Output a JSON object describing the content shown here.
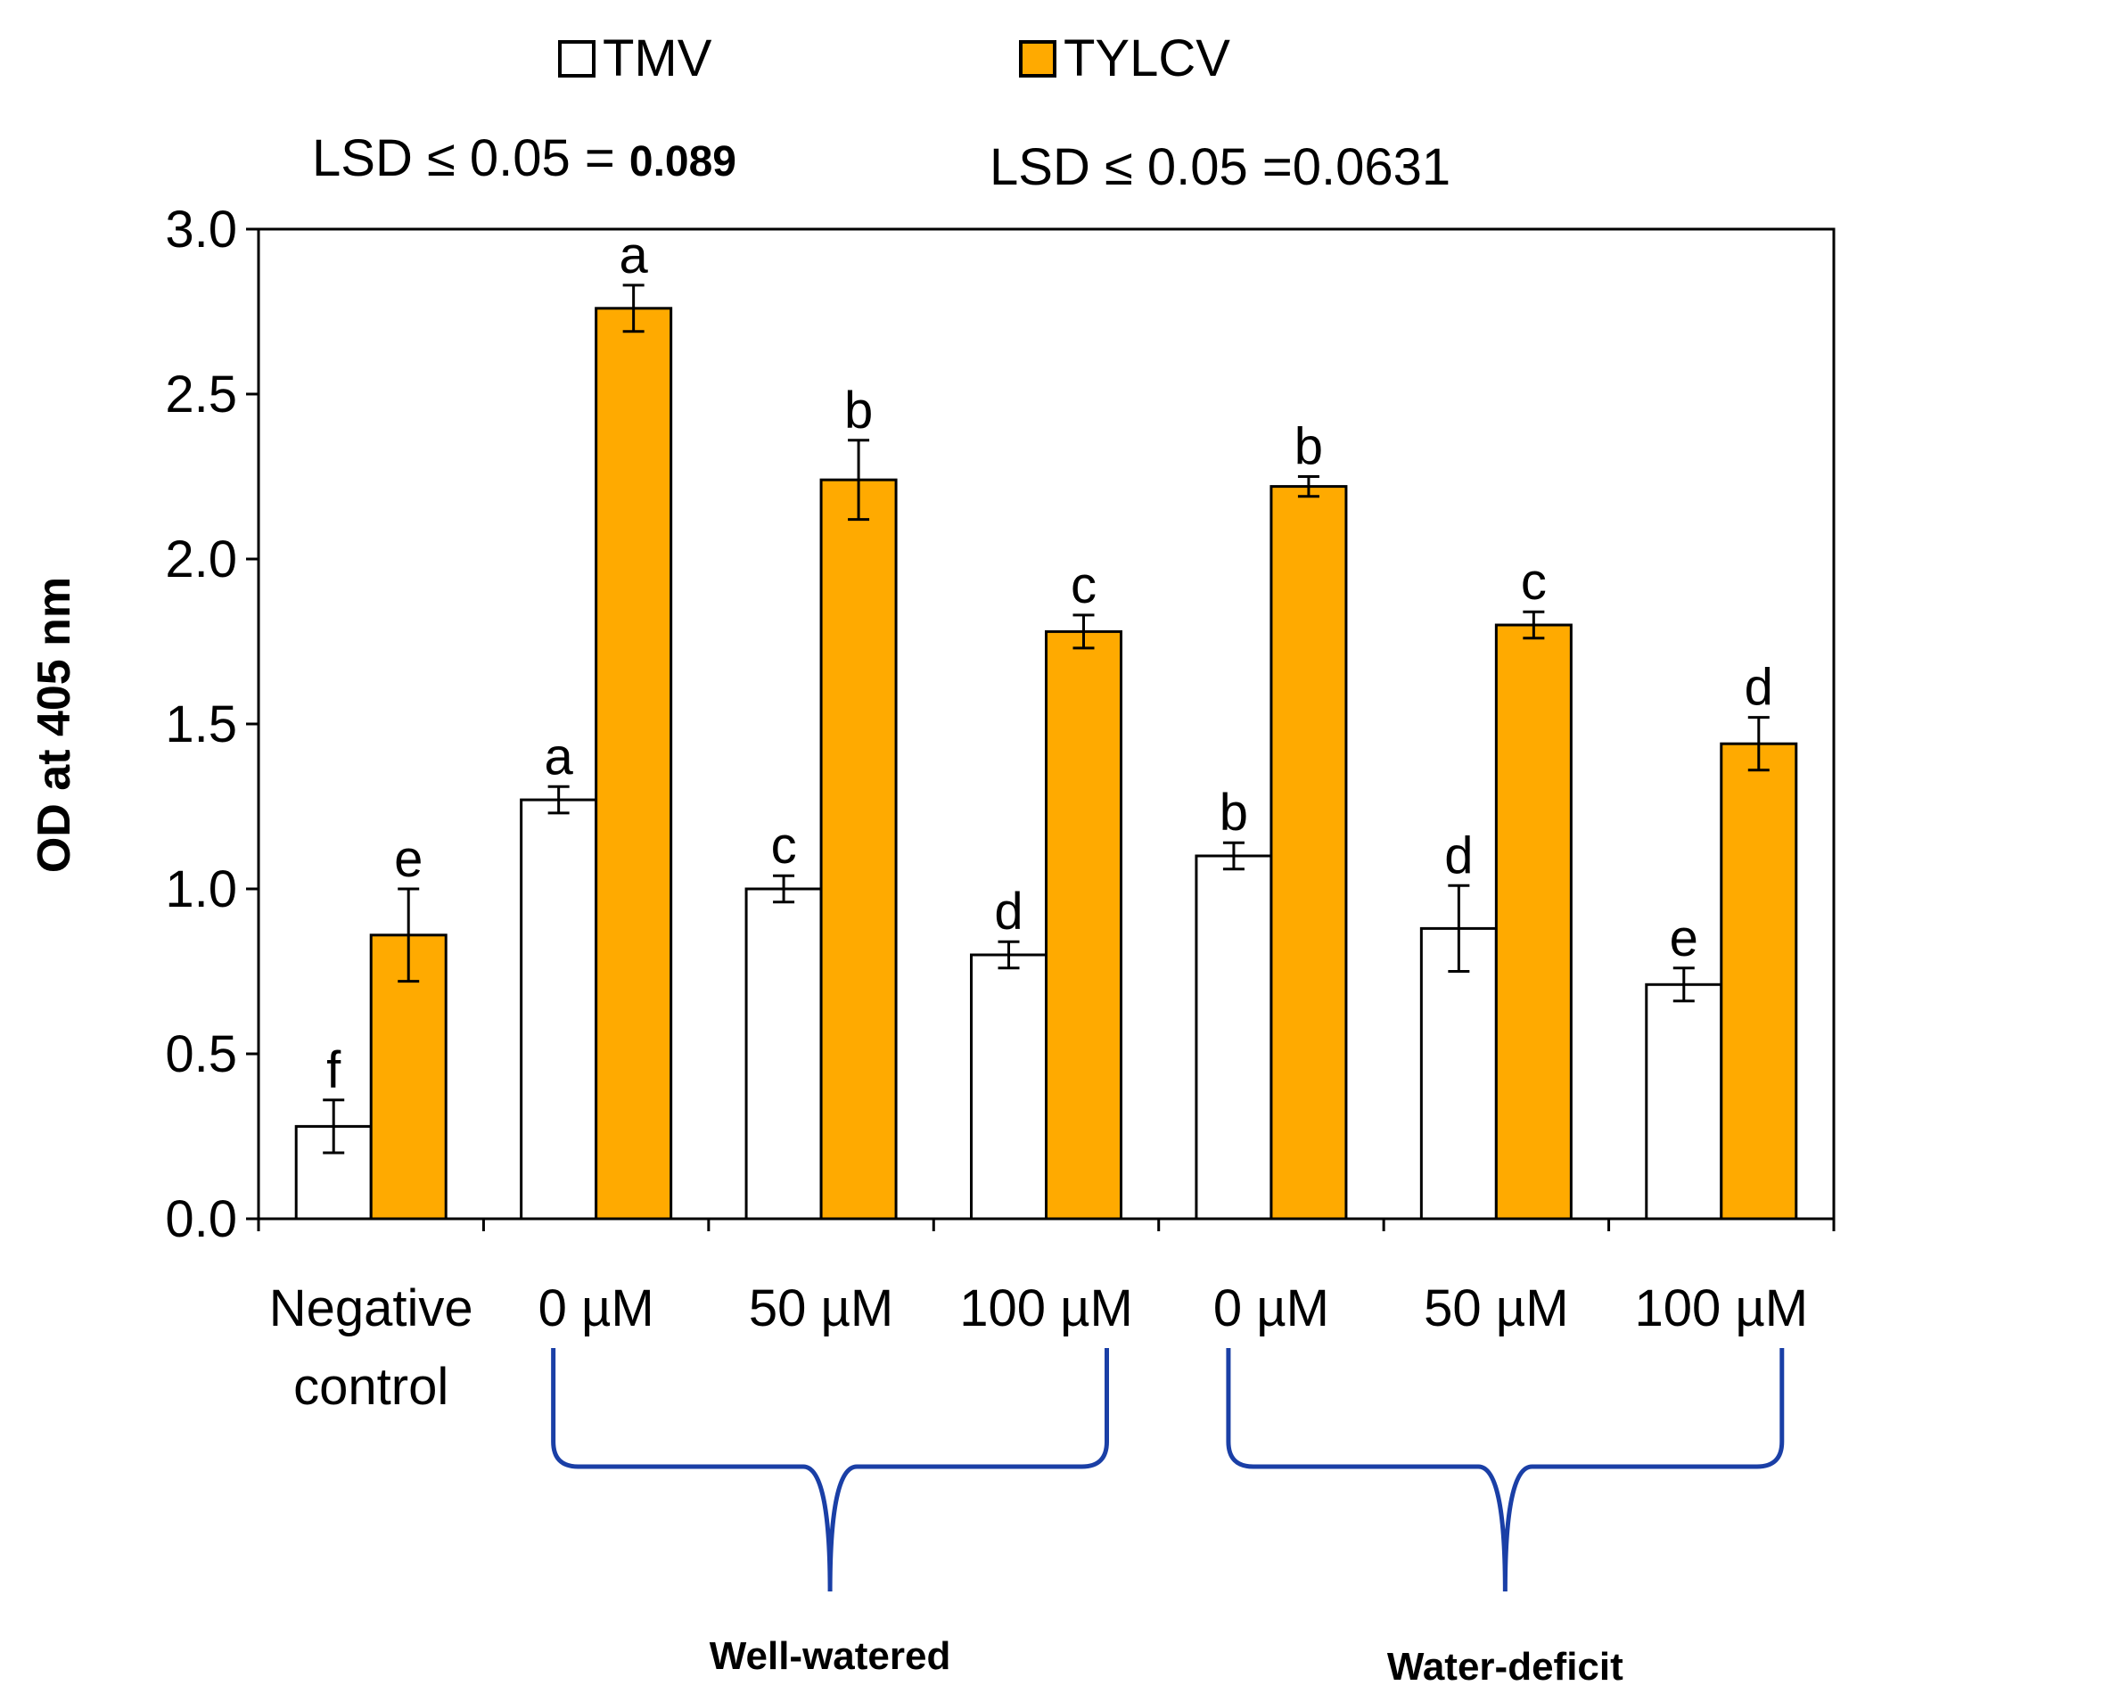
{
  "chart_data": {
    "type": "bar",
    "title": "",
    "xlabel": "",
    "ylabel": "OD at 405 nm",
    "ylim": [
      0,
      3.0
    ],
    "yticks": [
      "0.0",
      "0.5",
      "1.0",
      "1.5",
      "2.0",
      "2.5",
      "3.0"
    ],
    "grid": false,
    "legend": {
      "placement": "top",
      "entries": [
        {
          "name": "TMV",
          "color": "#ffffff"
        },
        {
          "name": "TYLCV",
          "color": "#ffaa00"
        }
      ]
    },
    "lsd": [
      {
        "prefix": "LSD ≤ 0.05 = ",
        "value": "0.089"
      },
      {
        "prefix": "LSD ≤ 0.05 =",
        "value": "0.0631"
      }
    ],
    "categories": [
      "Negative control",
      "0 µM",
      "50 µM",
      "100 µM",
      "0 µM",
      "50 µM",
      "100 µM"
    ],
    "category_lines": [
      [
        "Negative",
        "control"
      ],
      [
        "0 µM"
      ],
      [
        "50 µM"
      ],
      [
        "100 µM"
      ],
      [
        "0 µM"
      ],
      [
        "50 µM"
      ],
      [
        "100 µM"
      ]
    ],
    "series": [
      {
        "name": "TMV",
        "color": "#ffffff",
        "values": [
          0.28,
          1.27,
          1.0,
          0.8,
          1.1,
          0.88,
          0.71
        ],
        "errors": [
          0.08,
          0.04,
          0.04,
          0.04,
          0.04,
          0.13,
          0.05
        ],
        "letters": [
          "f",
          "a",
          "c",
          "d",
          "b",
          "d",
          "e"
        ]
      },
      {
        "name": "TYLCV",
        "color": "#ffaa00",
        "values": [
          0.86,
          2.76,
          2.24,
          1.78,
          2.22,
          1.8,
          1.44
        ],
        "errors": [
          0.14,
          0.07,
          0.12,
          0.05,
          0.03,
          0.04,
          0.08
        ],
        "letters": [
          "e",
          "a",
          "b",
          "c",
          "b",
          "c",
          "d"
        ]
      }
    ],
    "groups": [
      {
        "label": "Well-watered",
        "categories": [
          1,
          2,
          3
        ]
      },
      {
        "label": "Water-deficit",
        "categories": [
          4,
          5,
          6
        ]
      }
    ],
    "brace_color": "#1a3fa6"
  }
}
